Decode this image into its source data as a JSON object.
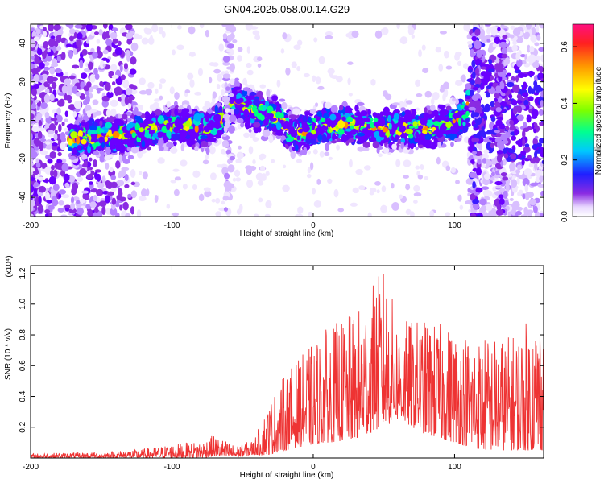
{
  "title": "GN04.2025.058.00.14.G29",
  "chart_data": [
    {
      "type": "heatmap",
      "xlabel": "Height of straight line (km)",
      "ylabel": "Frequency (Hz)",
      "xlim": [
        -200,
        163
      ],
      "ylim": [
        -50,
        50
      ],
      "x_ticks": [
        -200,
        -100,
        0,
        100
      ],
      "y_ticks": [
        -40,
        -20,
        0,
        20,
        40
      ],
      "colorbar": {
        "label": "Normalized spectral amplitude",
        "range": [
          0,
          0.68
        ],
        "ticks": [
          "0.0",
          "0.2",
          "0.4",
          "0.6"
        ]
      },
      "ridge": [
        {
          "x": -170,
          "y": -10
        },
        {
          "x": -150,
          "y": -8
        },
        {
          "x": -130,
          "y": -7
        },
        {
          "x": -110,
          "y": -4
        },
        {
          "x": -90,
          "y": -3
        },
        {
          "x": -75,
          "y": -5
        },
        {
          "x": -65,
          "y": 0
        },
        {
          "x": -60,
          "y": 5
        },
        {
          "x": -55,
          "y": 10
        },
        {
          "x": -45,
          "y": 6
        },
        {
          "x": -35,
          "y": 3
        },
        {
          "x": -25,
          "y": 2
        },
        {
          "x": -18,
          "y": -4
        },
        {
          "x": -12,
          "y": -8
        },
        {
          "x": 0,
          "y": -4
        },
        {
          "x": 20,
          "y": -2
        },
        {
          "x": 40,
          "y": -4
        },
        {
          "x": 60,
          "y": -4
        },
        {
          "x": 80,
          "y": -4
        },
        {
          "x": 100,
          "y": -1
        },
        {
          "x": 108,
          "y": 4
        },
        {
          "x": 113,
          "y": 18
        },
        {
          "x": 118,
          "y": 16
        },
        {
          "x": 125,
          "y": 8
        },
        {
          "x": 140,
          "y": 3
        },
        {
          "x": 163,
          "y": 3
        }
      ]
    },
    {
      "type": "line",
      "xlabel": "Height of straight line (km)",
      "ylabel": "SNR (10 * v/v)",
      "y_multiplier": "(x10⁴)",
      "xlim": [
        -200,
        163
      ],
      "ylim": [
        0,
        1.25
      ],
      "x_ticks": [
        -200,
        -100,
        0,
        100
      ],
      "y_ticks": [
        "0.2",
        "0.4",
        "0.6",
        "0.8",
        "1.0",
        "1.2"
      ],
      "series_color": "#ee3333",
      "envelope": [
        {
          "x": -200,
          "low": 0.0,
          "high": 0.03
        },
        {
          "x": -150,
          "low": 0.0,
          "high": 0.04
        },
        {
          "x": -120,
          "low": 0.0,
          "high": 0.06
        },
        {
          "x": -100,
          "low": 0.0,
          "high": 0.09
        },
        {
          "x": -80,
          "low": 0.0,
          "high": 0.11
        },
        {
          "x": -70,
          "low": 0.01,
          "high": 0.15
        },
        {
          "x": -55,
          "low": 0.0,
          "high": 0.08
        },
        {
          "x": -42,
          "low": 0.02,
          "high": 0.12
        },
        {
          "x": -32,
          "low": 0.02,
          "high": 0.35
        },
        {
          "x": -20,
          "low": 0.05,
          "high": 0.55
        },
        {
          "x": -5,
          "low": 0.08,
          "high": 0.7
        },
        {
          "x": 10,
          "low": 0.1,
          "high": 0.85
        },
        {
          "x": 30,
          "low": 0.12,
          "high": 0.95
        },
        {
          "x": 50,
          "low": 0.2,
          "high": 1.25
        },
        {
          "x": 60,
          "low": 0.25,
          "high": 0.9
        },
        {
          "x": 80,
          "low": 0.15,
          "high": 0.9
        },
        {
          "x": 100,
          "low": 0.1,
          "high": 0.85
        },
        {
          "x": 120,
          "low": 0.05,
          "high": 0.8
        },
        {
          "x": 140,
          "low": 0.05,
          "high": 0.8
        },
        {
          "x": 163,
          "low": 0.05,
          "high": 1.0
        }
      ]
    }
  ]
}
